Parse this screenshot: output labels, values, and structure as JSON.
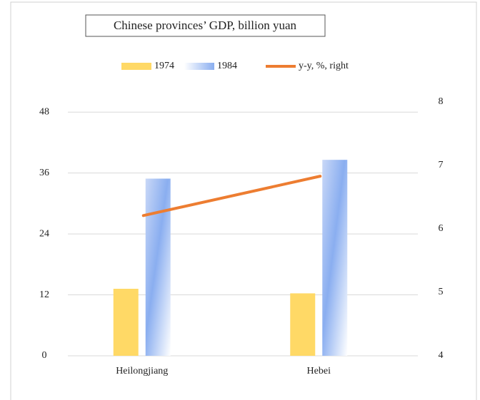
{
  "chart_data": {
    "type": "bar",
    "title": "Chinese provinces’ GDP, billion yuan",
    "categories": [
      "Heilongjiang",
      "Hebei"
    ],
    "series": [
      {
        "name": "1974",
        "color": "#ffd966",
        "values": [
          13.2,
          12.3
        ]
      },
      {
        "name": "1984",
        "color": "#8aaef0",
        "values": [
          34.9,
          38.6
        ]
      },
      {
        "name": "y-y, %, right",
        "color": "#ed7d31",
        "type": "line",
        "axis": "y2",
        "values": [
          6.21,
          6.83
        ]
      }
    ],
    "ylim": [
      0,
      50
    ],
    "yticks": [
      0,
      12,
      24,
      36,
      48
    ],
    "y2lim": [
      4,
      8
    ],
    "y2ticks": [
      4,
      5,
      6,
      7,
      8
    ],
    "grid": true,
    "legend": "top"
  }
}
